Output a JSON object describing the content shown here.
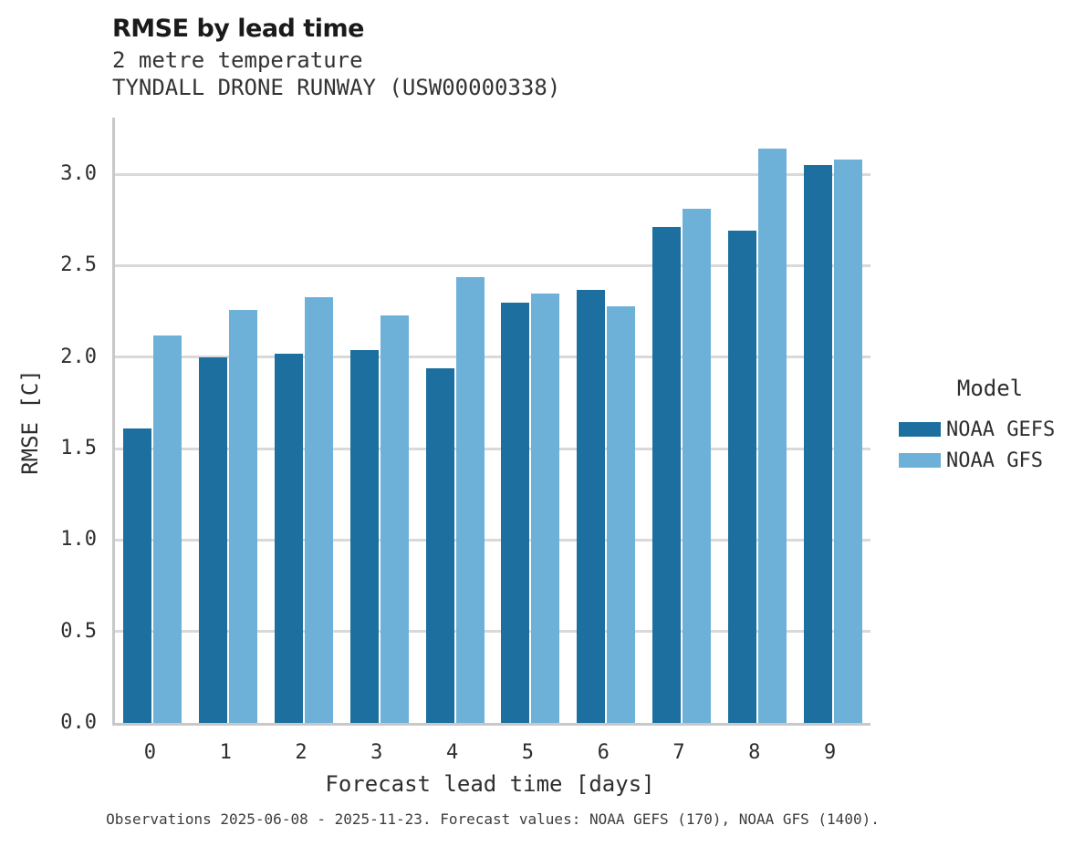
{
  "header": {
    "title": "RMSE by lead time",
    "subtitle_line1": "2 metre temperature",
    "subtitle_line2": "TYNDALL DRONE RUNWAY (USW00000338)"
  },
  "caption": "Observations 2025-06-08 - 2025-11-23. Forecast values: NOAA GEFS (170), NOAA GFS (1400).",
  "colors": {
    "noaa_gefs": "#1c6f9e",
    "noaa_gfs": "#6db1d9",
    "gridline": "#d9d9d9",
    "spine": "#c8c8c8",
    "text": "#2e2e2e"
  },
  "chart_data": {
    "type": "bar",
    "title": "RMSE by lead time",
    "subtitle": [
      "2 metre temperature",
      "TYNDALL DRONE RUNWAY (USW00000338)"
    ],
    "categories": [
      "0",
      "1",
      "2",
      "3",
      "4",
      "5",
      "6",
      "7",
      "8",
      "9"
    ],
    "series": [
      {
        "name": "NOAA GEFS",
        "color": "#1c6f9e",
        "values": [
          1.61,
          2.0,
          2.02,
          2.04,
          1.94,
          2.3,
          2.37,
          2.71,
          2.69,
          3.05
        ]
      },
      {
        "name": "NOAA GFS",
        "color": "#6db1d9",
        "values": [
          2.12,
          2.26,
          2.33,
          2.23,
          2.44,
          2.35,
          2.28,
          2.81,
          3.14,
          3.08
        ]
      }
    ],
    "xlabel": "Forecast lead time [days]",
    "ylabel": "RMSE [C]",
    "ylim": [
      0,
      3.31
    ],
    "yticks": [
      "0.0",
      "0.5",
      "1.0",
      "1.5",
      "2.0",
      "2.5",
      "3.0"
    ],
    "grid": "horizontal",
    "legend": {
      "title": "Model",
      "position": "right",
      "entries": [
        "NOAA GEFS",
        "NOAA GFS"
      ]
    }
  }
}
